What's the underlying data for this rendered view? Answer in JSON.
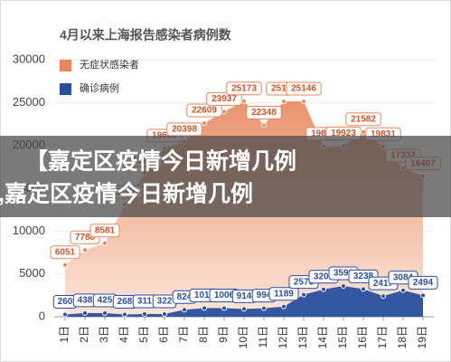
{
  "chart_data": {
    "type": "area",
    "title": "4月以来上海报告感染者病例数",
    "categories": [
      "1日",
      "2日",
      "3日",
      "4日",
      "5日",
      "6日",
      "7日",
      "8日",
      "9日",
      "10日",
      "11日",
      "12日",
      "13日",
      "14日",
      "15日",
      "16日",
      "17日",
      "18日",
      "19日"
    ],
    "series": [
      {
        "name": "无症状感染者",
        "color": "#e8875e",
        "values": [
          6051,
          7788,
          8581,
          13086,
          16766,
          19660,
          20398,
          22609,
          23937,
          25173,
          22348,
          25141,
          25146,
          19872,
          19923,
          21582,
          19831,
          17332,
          16407
        ]
      },
      {
        "name": "确诊病例",
        "color": "#2a4f9f",
        "values": [
          260,
          438,
          425,
          268,
          311,
          322,
          824,
          1015,
          1006,
          914,
          994,
          1189,
          2573,
          3200,
          3590,
          3238,
          2417,
          3084,
          2494
        ]
      }
    ],
    "ylim": [
      0,
      30000
    ],
    "yticks": [
      0,
      5000,
      10000,
      15000,
      20000,
      25000,
      30000
    ],
    "grid": true
  },
  "overlay": {
    "lines": [
      "【嘉定区疫情今日新增几例",
      ",嘉定区疫情今日新增几例"
    ]
  }
}
